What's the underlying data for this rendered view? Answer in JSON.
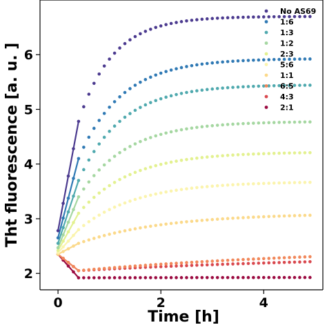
{
  "chart_data": {
    "type": "scatter",
    "xlabel": "Time [h]",
    "ylabel": "Tht fluorescence [a. u. ]",
    "xlim": [
      -0.35,
      5.15
    ],
    "ylim": [
      1.7,
      7.0
    ],
    "xticks": [
      0,
      2,
      4
    ],
    "yticks": [
      2,
      3,
      4,
      5,
      6
    ],
    "grid": false,
    "legend_position": "top-right",
    "series": [
      {
        "name": "No AS69",
        "color": "#4b3a8f",
        "start": 2.78,
        "early_end": 4.78,
        "plateau": 6.7,
        "rate": 1.5,
        "min": null
      },
      {
        "name": "1:6",
        "color": "#2f79b4",
        "start": 2.65,
        "early_end": 4.1,
        "plateau": 5.93,
        "rate": 1.2,
        "min": null
      },
      {
        "name": "1:3",
        "color": "#4fa9ae",
        "start": 2.55,
        "early_end": 3.7,
        "plateau": 5.45,
        "rate": 1.2,
        "min": null
      },
      {
        "name": "1:2",
        "color": "#a5d7a1",
        "start": 2.47,
        "early_end": 3.4,
        "plateau": 4.78,
        "rate": 1.1,
        "min": null
      },
      {
        "name": "2:3",
        "color": "#e3f190",
        "start": 2.42,
        "early_end": 3.1,
        "plateau": 4.22,
        "rate": 1.0,
        "min": null
      },
      {
        "name": "5:6",
        "color": "#fbf4ad",
        "start": 2.38,
        "early_end": 2.8,
        "plateau": 3.68,
        "rate": 0.9,
        "min": null
      },
      {
        "name": "1:1",
        "color": "#fbd98a",
        "start": 2.35,
        "early_end": 2.55,
        "plateau": 3.1,
        "rate": 0.6,
        "min": null
      },
      {
        "name": "6:5",
        "color": "#f1875a",
        "start": 2.35,
        "early_end": 2.05,
        "plateau": 2.48,
        "rate": 0.4,
        "min": 2.05
      },
      {
        "name": "4:3",
        "color": "#d9484e",
        "start": 2.35,
        "early_end": 2.05,
        "plateau": 2.35,
        "rate": 0.35,
        "min": 2.03
      },
      {
        "name": "2:1",
        "color": "#9b0a40",
        "start": 2.35,
        "early_end": 1.92,
        "plateau": 1.95,
        "rate": 0.1,
        "min": 1.92
      }
    ]
  }
}
